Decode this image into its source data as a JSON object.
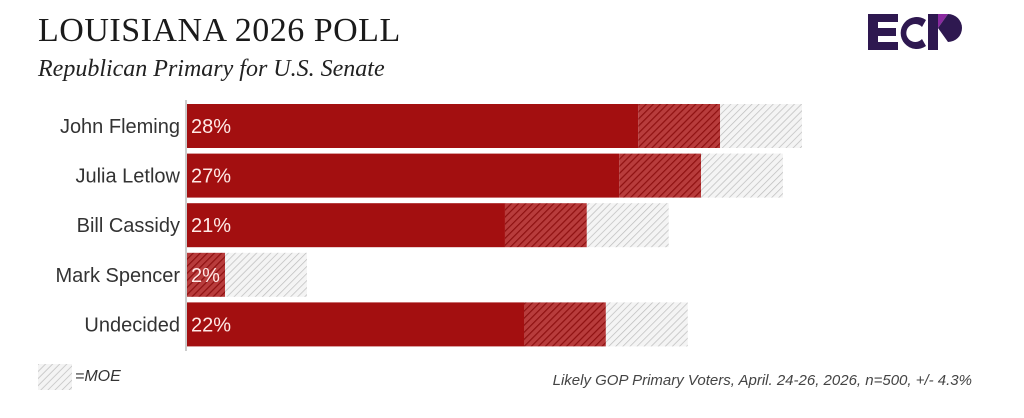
{
  "chart_data": {
    "type": "bar",
    "orientation": "horizontal",
    "title": "LOUISIANA 2026 POLL",
    "subtitle": "Republican Primary for U.S. Senate",
    "categories": [
      "John Fleming",
      "Julia Letlow",
      "Bill Cassidy",
      "Mark Spencer",
      "Undecided"
    ],
    "values": [
      28,
      27,
      21,
      2,
      22
    ],
    "data_labels": [
      "28%",
      "27%",
      "21%",
      "2%",
      "22%"
    ],
    "moe": 4.3,
    "legend": {
      "label": "=MOE",
      "placement": "bottom-left"
    },
    "note": "Likely GOP Primary Voters, April. 24-26, 2026, n=500, +/- 4.3%",
    "colors": {
      "bar": "#a30f10",
      "moe_low": "#a30f10",
      "moe_high": "#bdbdbd",
      "label": "#ffe9e6"
    },
    "grid": false
  },
  "logo": {
    "text": "ECP",
    "colors": {
      "primary": "#2e1850",
      "accent": "#7a2a9c"
    }
  }
}
